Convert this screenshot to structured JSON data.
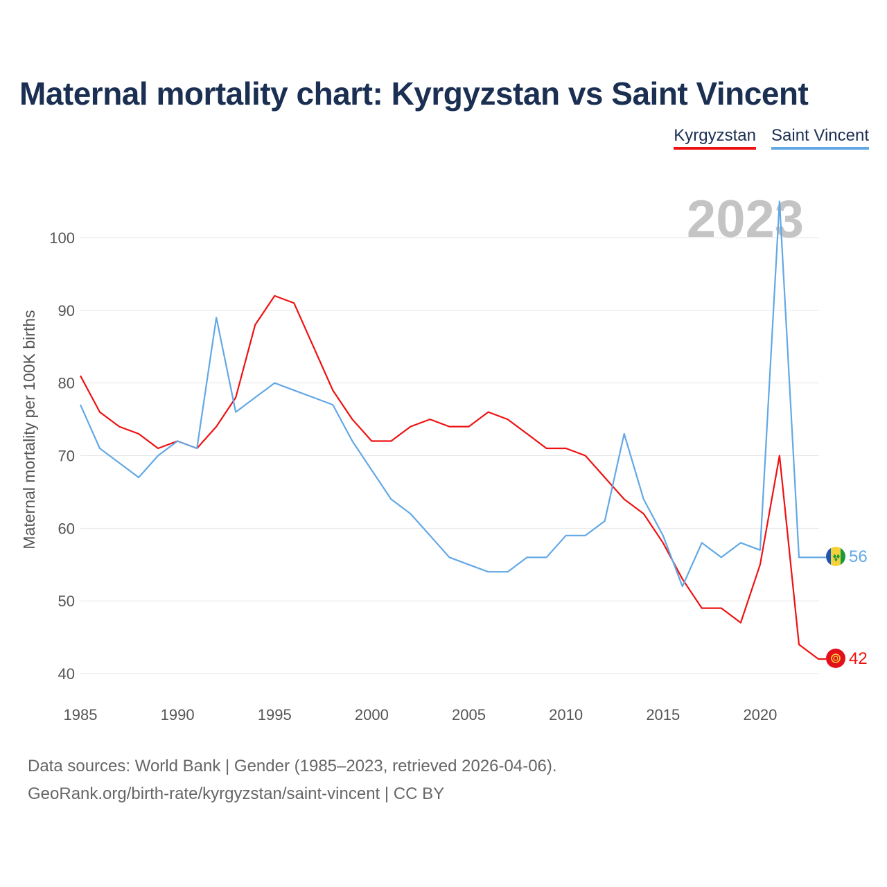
{
  "title": "Maternal mortality chart: Kyrgyzstan vs Saint Vincent",
  "legend": [
    {
      "name": "Kyrgyzstan",
      "color": "#ee1111"
    },
    {
      "name": "Saint Vincent",
      "color": "#62a8e5"
    }
  ],
  "year_label": "2023",
  "sources": {
    "line1": "Data sources: World Bank | Gender (1985–2023, retrieved 2026-04-06).",
    "line2": "GeoRank.org/birth-rate/kyrgyzstan/saint-vincent | CC BY"
  },
  "chart_data": {
    "type": "line",
    "title": "Maternal mortality chart: Kyrgyzstan vs Saint Vincent",
    "xlabel": "",
    "ylabel": "Maternal mortality per 100K births",
    "x": [
      1985,
      1986,
      1987,
      1988,
      1989,
      1990,
      1991,
      1992,
      1993,
      1994,
      1995,
      1996,
      1997,
      1998,
      1999,
      2000,
      2001,
      2002,
      2003,
      2004,
      2005,
      2006,
      2007,
      2008,
      2009,
      2010,
      2011,
      2012,
      2013,
      2014,
      2015,
      2016,
      2017,
      2018,
      2019,
      2020,
      2021,
      2022,
      2023
    ],
    "xlim": [
      1985,
      2023
    ],
    "ylim": [
      40,
      105
    ],
    "xticks": [
      1985,
      1990,
      1995,
      2000,
      2005,
      2010,
      2015,
      2020
    ],
    "yticks": [
      40,
      50,
      60,
      70,
      80,
      90,
      100
    ],
    "grid": true,
    "legend_position": "top-right",
    "series": [
      {
        "name": "Kyrgyzstan",
        "color": "#ee1111",
        "end_label": "42",
        "values": [
          81,
          76,
          74,
          73,
          71,
          72,
          71,
          74,
          78,
          88,
          92,
          91,
          85,
          79,
          75,
          72,
          72,
          74,
          75,
          74,
          74,
          76,
          75,
          73,
          71,
          71,
          70,
          67,
          64,
          62,
          58,
          53,
          49,
          49,
          47,
          55,
          70,
          44,
          42
        ]
      },
      {
        "name": "Saint Vincent",
        "color": "#62a8e5",
        "end_label": "56",
        "values": [
          77,
          71,
          69,
          67,
          70,
          72,
          71,
          89,
          76,
          78,
          80,
          79,
          78,
          77,
          72,
          68,
          64,
          62,
          59,
          56,
          55,
          54,
          54,
          56,
          56,
          59,
          59,
          61,
          73,
          64,
          59,
          52,
          58,
          56,
          58,
          57,
          105,
          56,
          56
        ]
      }
    ]
  }
}
